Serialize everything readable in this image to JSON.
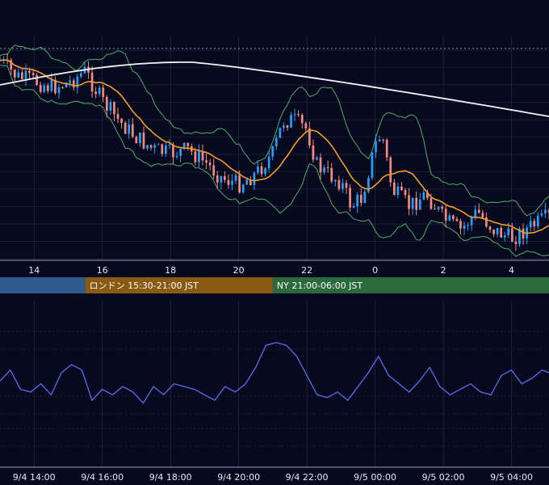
{
  "chart_data": {
    "type": "line",
    "grid": true,
    "price_panel": {
      "series_kind": "candlestick",
      "indicators": [
        "bollinger-bands",
        "moving-average",
        "moving-average-long"
      ],
      "colors": {
        "up": "#2a9df4",
        "down": "#f08a7e",
        "bollinger": "#4fae67",
        "ma": "#f39c2c",
        "ma_long": "#f4f4f4",
        "grid": "#3a3f5a",
        "background": "#070a1f"
      },
      "x_tick_labels": [
        "14",
        "16",
        "18",
        "20",
        "22",
        "0",
        "2",
        "4"
      ],
      "x_tick_hours": [
        14,
        16,
        18,
        20,
        22,
        24,
        26,
        28
      ]
    },
    "sessions": [
      {
        "label": "",
        "start_hour": 13.0,
        "end_hour": 15.5,
        "color": "#2f5a8e"
      },
      {
        "label": "ロンドン 15:30-21:00 JST",
        "start_hour": 15.5,
        "end_hour": 21.0,
        "color": "#8a5a14"
      },
      {
        "label": "NY 21:00-06:00 JST",
        "start_hour": 21.0,
        "end_hour": 29.1,
        "color": "#2a6a3c"
      }
    ],
    "oscillator_panel": {
      "line_color": "#5a6cf0",
      "x_tick_labels": [
        "9/4 14:00",
        "9/4 16:00",
        "9/4 18:00",
        "9/4 20:00",
        "9/4 22:00",
        "9/5 00:00",
        "9/5 02:00",
        "9/5 04:00"
      ],
      "x_tick_hours": [
        14,
        16,
        18,
        20,
        22,
        24,
        26,
        28
      ],
      "x": [
        13.0,
        13.3,
        13.6,
        13.9,
        14.2,
        14.5,
        14.8,
        15.1,
        15.4,
        15.7,
        16.0,
        16.3,
        16.6,
        16.9,
        17.2,
        17.5,
        17.8,
        18.1,
        18.4,
        18.7,
        19.0,
        19.3,
        19.6,
        19.9,
        20.2,
        20.5,
        20.8,
        21.1,
        21.4,
        21.7,
        22.0,
        22.3,
        22.6,
        22.9,
        23.2,
        23.5,
        23.8,
        24.1,
        24.4,
        24.7,
        25.0,
        25.3,
        25.6,
        25.9,
        26.2,
        26.5,
        26.8,
        27.1,
        27.4,
        27.7,
        28.0,
        28.3,
        28.6,
        28.9,
        29.1
      ],
      "values": [
        -0.1,
        0.3,
        -0.4,
        -0.5,
        -0.2,
        -0.6,
        0.2,
        0.5,
        0.3,
        -0.8,
        -0.4,
        -0.6,
        -0.3,
        -0.5,
        -0.9,
        -0.3,
        -0.6,
        -0.2,
        -0.3,
        -0.4,
        -0.6,
        -0.8,
        -0.3,
        -0.5,
        -0.2,
        0.4,
        1.2,
        1.3,
        1.2,
        0.8,
        0.1,
        -0.6,
        -0.7,
        -0.5,
        -0.8,
        -0.3,
        0.2,
        0.8,
        0.1,
        -0.2,
        -0.5,
        -0.1,
        0.4,
        -0.3,
        -0.6,
        -0.4,
        -0.2,
        -0.5,
        -0.6,
        0.1,
        0.3,
        -0.2,
        0.0,
        0.3,
        0.2
      ]
    }
  }
}
